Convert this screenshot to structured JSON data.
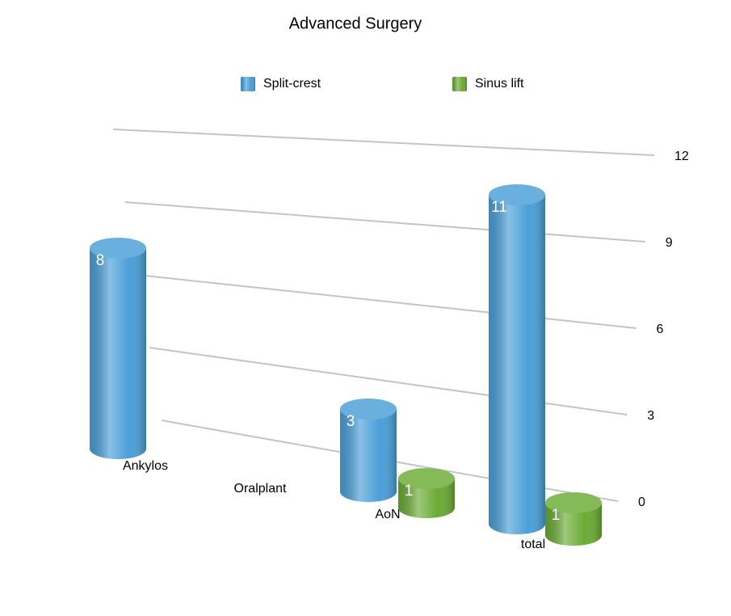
{
  "chart_data": {
    "type": "bar",
    "title": "Advanced Surgery",
    "categories": [
      "Ankylos",
      "Oralplant",
      "AoN",
      "total"
    ],
    "series": [
      {
        "name": "Split-crest",
        "color": "#4a9fd8",
        "values": [
          8,
          null,
          3,
          11
        ]
      },
      {
        "name": "Sinus lift",
        "color": "#6aab34",
        "values": [
          null,
          null,
          1,
          1
        ]
      }
    ],
    "ylim": [
      0,
      12
    ],
    "yticks": [
      0,
      3,
      6,
      9,
      12
    ],
    "grid": true,
    "legend": "top"
  }
}
